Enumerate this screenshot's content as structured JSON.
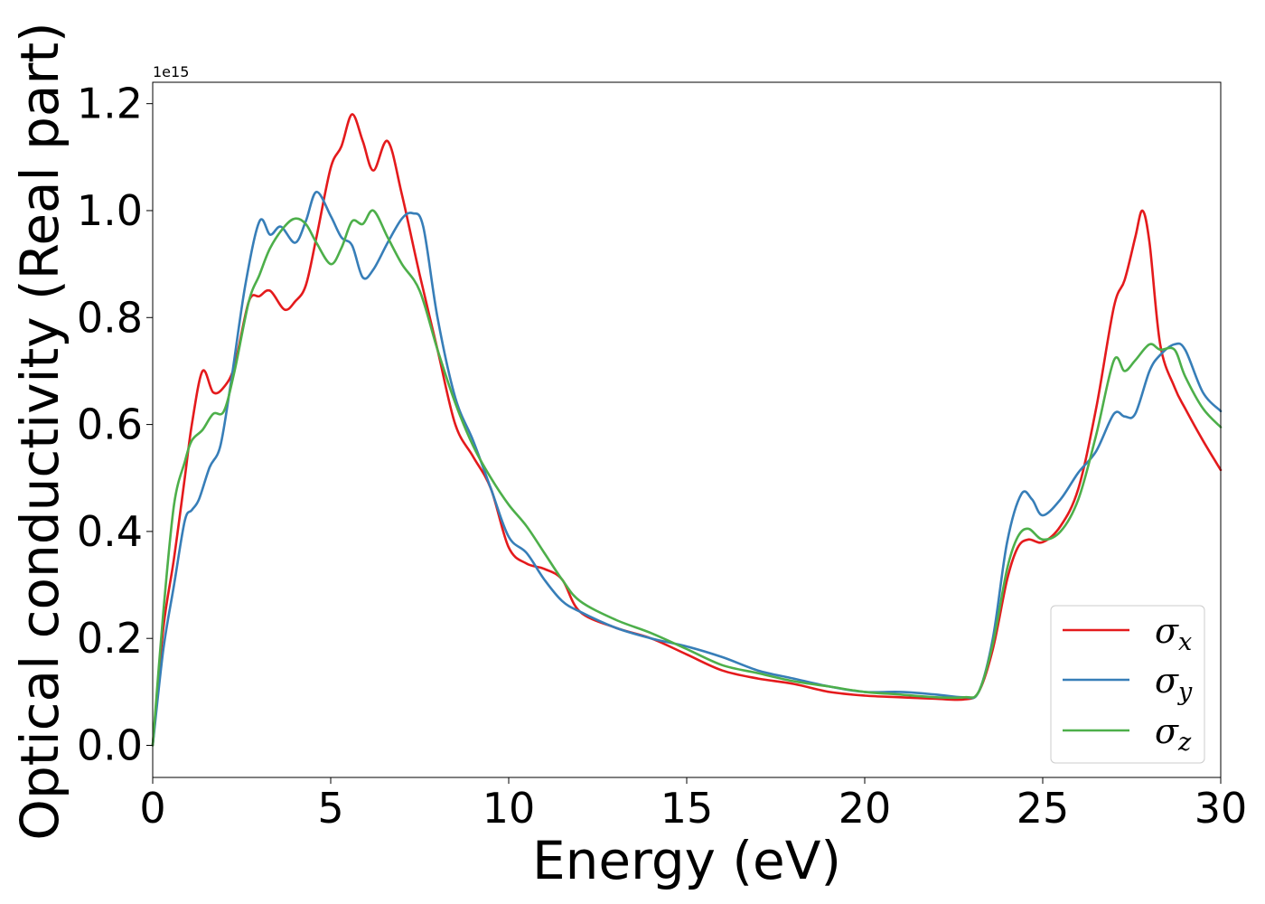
{
  "chart_data": {
    "type": "line",
    "title": "",
    "xlabel": "Energy (eV)",
    "ylabel": "Optical conductivity (Real part)",
    "y_offset_text": "1e15",
    "xlim": [
      0,
      30
    ],
    "ylim": [
      -0.06,
      1.24
    ],
    "x_ticks": [
      0,
      5,
      10,
      15,
      20,
      25,
      30
    ],
    "x_tick_labels": [
      "0",
      "5",
      "10",
      "15",
      "20",
      "25",
      "30"
    ],
    "y_ticks": [
      0.0,
      0.2,
      0.4,
      0.6,
      0.8,
      1.0,
      1.2
    ],
    "y_tick_labels": [
      "0.0",
      "0.2",
      "0.4",
      "0.6",
      "0.8",
      "1.0",
      "1.2"
    ],
    "grid": false,
    "legend_position": "lower-right",
    "series": [
      {
        "symbol": "σ",
        "subscript": "x",
        "color": "#e41a1c",
        "x": [
          0,
          0.3,
          0.6,
          0.9,
          1.1,
          1.4,
          1.7,
          2.0,
          2.3,
          2.7,
          3.0,
          3.3,
          3.7,
          4.0,
          4.3,
          4.6,
          5.0,
          5.3,
          5.6,
          5.9,
          6.2,
          6.6,
          7.0,
          7.5,
          8.0,
          8.5,
          9.0,
          9.5,
          10.0,
          10.5,
          11.0,
          11.5,
          12.0,
          13.0,
          14.0,
          15.0,
          16.0,
          17.0,
          18.0,
          19.0,
          20.0,
          21.0,
          22.0,
          22.8,
          23.2,
          23.6,
          24.0,
          24.3,
          24.6,
          25.0,
          25.5,
          26.0,
          26.5,
          27.0,
          27.3,
          27.6,
          27.8,
          28.0,
          28.3,
          28.7,
          29.0,
          29.5,
          30.0
        ],
        "y": [
          0.0,
          0.22,
          0.35,
          0.5,
          0.6,
          0.7,
          0.66,
          0.67,
          0.71,
          0.83,
          0.84,
          0.85,
          0.815,
          0.83,
          0.86,
          0.95,
          1.08,
          1.12,
          1.18,
          1.13,
          1.075,
          1.13,
          1.03,
          0.88,
          0.74,
          0.6,
          0.54,
          0.48,
          0.37,
          0.34,
          0.33,
          0.31,
          0.25,
          0.22,
          0.2,
          0.17,
          0.14,
          0.125,
          0.115,
          0.1,
          0.093,
          0.09,
          0.087,
          0.086,
          0.1,
          0.18,
          0.31,
          0.37,
          0.385,
          0.38,
          0.41,
          0.48,
          0.63,
          0.82,
          0.87,
          0.95,
          1.0,
          0.94,
          0.75,
          0.67,
          0.63,
          0.57,
          0.515
        ]
      },
      {
        "symbol": "σ",
        "subscript": "y",
        "color": "#377eb8",
        "x": [
          0,
          0.3,
          0.6,
          0.9,
          1.1,
          1.3,
          1.6,
          1.9,
          2.2,
          2.6,
          3.0,
          3.3,
          3.6,
          4.0,
          4.3,
          4.6,
          5.0,
          5.3,
          5.6,
          5.9,
          6.2,
          6.6,
          7.0,
          7.3,
          7.6,
          8.0,
          8.5,
          9.0,
          9.5,
          10.0,
          10.5,
          11.0,
          11.5,
          12.0,
          13.0,
          14.0,
          15.0,
          16.0,
          17.0,
          18.0,
          19.0,
          20.0,
          21.0,
          22.0,
          22.8,
          23.2,
          23.6,
          24.0,
          24.4,
          24.7,
          25.0,
          25.5,
          26.0,
          26.5,
          27.0,
          27.3,
          27.6,
          28.0,
          28.3,
          28.7,
          29.0,
          29.5,
          30.0
        ],
        "y": [
          0.0,
          0.18,
          0.3,
          0.42,
          0.44,
          0.46,
          0.52,
          0.56,
          0.68,
          0.86,
          0.98,
          0.955,
          0.97,
          0.94,
          0.98,
          1.035,
          0.99,
          0.95,
          0.935,
          0.875,
          0.89,
          0.94,
          0.985,
          0.995,
          0.97,
          0.8,
          0.65,
          0.57,
          0.48,
          0.39,
          0.36,
          0.31,
          0.27,
          0.25,
          0.22,
          0.2,
          0.185,
          0.165,
          0.14,
          0.125,
          0.11,
          0.1,
          0.1,
          0.095,
          0.09,
          0.1,
          0.2,
          0.38,
          0.47,
          0.46,
          0.43,
          0.46,
          0.51,
          0.55,
          0.62,
          0.615,
          0.62,
          0.7,
          0.73,
          0.75,
          0.74,
          0.66,
          0.625
        ]
      },
      {
        "symbol": "σ",
        "subscript": "z",
        "color": "#4daf4a",
        "x": [
          0,
          0.3,
          0.6,
          0.9,
          1.1,
          1.4,
          1.7,
          2.0,
          2.3,
          2.7,
          3.0,
          3.3,
          3.7,
          4.0,
          4.3,
          4.6,
          5.0,
          5.3,
          5.6,
          5.9,
          6.2,
          6.6,
          7.0,
          7.5,
          8.0,
          8.5,
          9.0,
          9.5,
          10.0,
          10.5,
          11.0,
          11.5,
          12.0,
          13.0,
          14.0,
          15.0,
          16.0,
          17.0,
          18.0,
          19.0,
          20.0,
          21.0,
          22.0,
          22.8,
          23.2,
          23.6,
          24.0,
          24.3,
          24.6,
          25.0,
          25.5,
          26.0,
          26.5,
          27.0,
          27.3,
          27.6,
          28.0,
          28.3,
          28.7,
          29.0,
          29.5,
          30.0
        ],
        "y": [
          0.0,
          0.25,
          0.45,
          0.53,
          0.57,
          0.59,
          0.62,
          0.625,
          0.7,
          0.83,
          0.88,
          0.93,
          0.97,
          0.985,
          0.975,
          0.94,
          0.9,
          0.93,
          0.98,
          0.975,
          1.0,
          0.95,
          0.9,
          0.85,
          0.74,
          0.64,
          0.56,
          0.5,
          0.45,
          0.41,
          0.36,
          0.31,
          0.27,
          0.235,
          0.21,
          0.18,
          0.15,
          0.135,
          0.12,
          0.11,
          0.1,
          0.095,
          0.09,
          0.09,
          0.1,
          0.19,
          0.33,
          0.39,
          0.405,
          0.385,
          0.4,
          0.46,
          0.58,
          0.72,
          0.7,
          0.72,
          0.75,
          0.74,
          0.74,
          0.69,
          0.63,
          0.595
        ]
      }
    ]
  }
}
